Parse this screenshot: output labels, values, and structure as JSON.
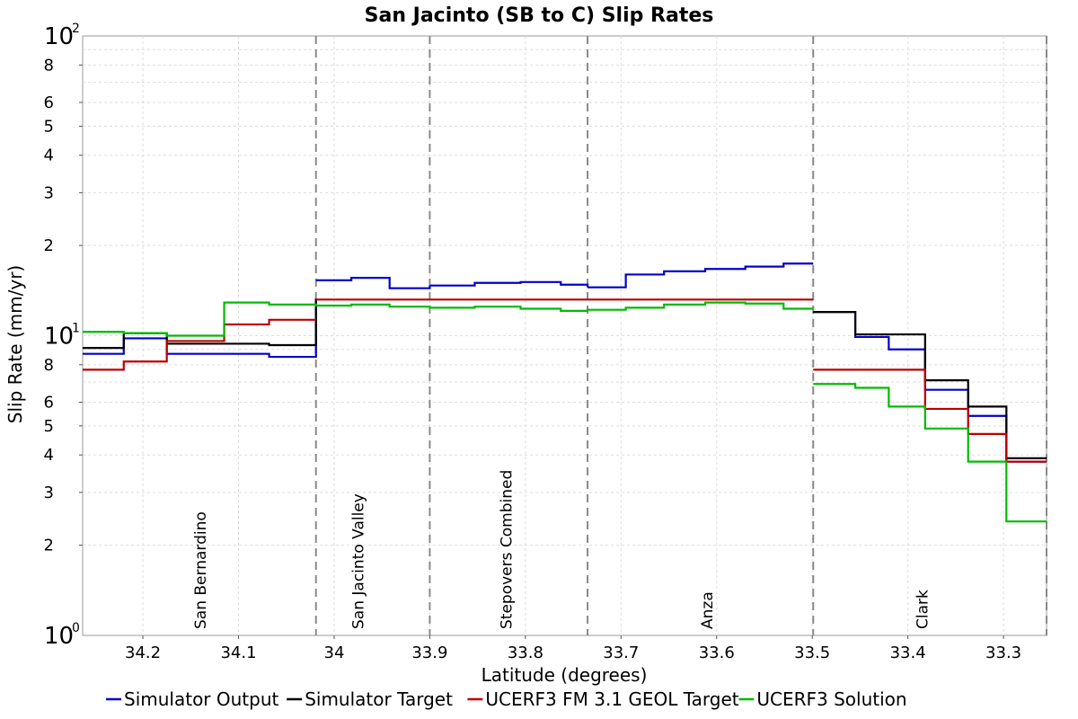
{
  "chart_data": {
    "type": "line",
    "step": true,
    "title": "San Jacinto (SB to C) Slip Rates",
    "xlabel": "Latitude (degrees)",
    "ylabel": "Slip Rate (mm/yr)",
    "x_reversed": true,
    "xlim": [
      34.263,
      33.255
    ],
    "ylim": [
      1,
      100
    ],
    "y_scale": "log",
    "grid": true,
    "legend_position": "bottom",
    "x_ticks": [
      34.2,
      34.1,
      34.0,
      33.9,
      33.8,
      33.7,
      33.6,
      33.5,
      33.4,
      33.3
    ],
    "x_tick_labels": [
      "34.2",
      "34.1",
      "34",
      "33.9",
      "33.8",
      "33.7",
      "33.6",
      "33.5",
      "33.4",
      "33.3"
    ],
    "y_minor_ticks": [
      2,
      3,
      4,
      5,
      6,
      8,
      20,
      30,
      40,
      50,
      60,
      80
    ],
    "y_minor_tick_labels": [
      "2",
      "3",
      "4",
      "5",
      "6",
      "8",
      "2",
      "3",
      "4",
      "5",
      "6",
      "8"
    ],
    "y_decades": [
      {
        "value": 1,
        "base": "10",
        "exp": "0"
      },
      {
        "value": 10,
        "base": "10",
        "exp": "1"
      },
      {
        "value": 100,
        "base": "10",
        "exp": "2"
      }
    ],
    "sections": [
      {
        "label": "San Bernardino",
        "x": 34.14
      },
      {
        "label": "San Jacinto Valley",
        "x": 33.975
      },
      {
        "label": "Stepovers Combined",
        "x": 33.82
      },
      {
        "label": "Anza",
        "x": 33.61
      },
      {
        "label": "Clark",
        "x": 33.385
      }
    ],
    "section_boundaries": [
      34.019,
      33.9,
      33.735,
      33.499,
      33.255
    ],
    "series": [
      {
        "name": "Simulator Output",
        "color": "#0000cc",
        "segments": [
          {
            "x": [
              34.263,
              34.22,
              34.175,
              34.068,
              34.019
            ],
            "y": [
              8.7,
              9.8,
              8.7,
              8.5,
              13.3
            ]
          },
          {
            "x": [
              34.019,
              33.982,
              33.942,
              33.9
            ],
            "y": [
              15.3,
              15.6,
              14.4,
              14.7
            ]
          },
          {
            "x": [
              33.9,
              33.853,
              33.805,
              33.763,
              33.735
            ],
            "y": [
              14.7,
              15.0,
              15.1,
              14.8,
              14.5
            ]
          },
          {
            "x": [
              33.735,
              33.695,
              33.655,
              33.612,
              33.57,
              33.53,
              33.499
            ],
            "y": [
              14.5,
              16.0,
              16.4,
              16.7,
              17.0,
              17.4,
              17.4
            ]
          },
          {
            "x": [
              33.499,
              33.455,
              33.42,
              33.382,
              33.337,
              33.297,
              33.255
            ],
            "y": [
              12.0,
              9.9,
              9.0,
              6.6,
              5.4,
              3.8,
              3.8
            ]
          }
        ]
      },
      {
        "name": "Simulator Target",
        "color": "#000000",
        "segments": [
          {
            "x": [
              34.263,
              34.22,
              34.175,
              34.068,
              34.019
            ],
            "y": [
              9.1,
              10.2,
              9.4,
              9.3,
              13.3
            ]
          },
          {
            "x": [
              33.499,
              33.455,
              33.382,
              33.337,
              33.297,
              33.255
            ],
            "y": [
              12.0,
              10.1,
              7.1,
              5.8,
              3.9,
              3.9
            ]
          }
        ]
      },
      {
        "name": "UCERF3 FM 3.1 GEOL Target",
        "color": "#bb0000",
        "segments": [
          {
            "x": [
              34.263,
              34.22,
              34.175,
              34.115,
              34.068,
              34.019
            ],
            "y": [
              7.7,
              8.2,
              9.6,
              10.9,
              11.3,
              11.3
            ]
          },
          {
            "x": [
              34.019,
              33.499
            ],
            "y": [
              13.2,
              13.2
            ]
          },
          {
            "x": [
              33.499,
              33.382,
              33.337,
              33.297,
              33.255
            ],
            "y": [
              7.7,
              5.7,
              4.7,
              3.8,
              3.8
            ]
          }
        ]
      },
      {
        "name": "UCERF3 Solution",
        "color": "#00bb00",
        "segments": [
          {
            "x": [
              34.263,
              34.22,
              34.175,
              34.115,
              34.068,
              34.019,
              33.982,
              33.942,
              33.9,
              33.853,
              33.805,
              33.763,
              33.735,
              33.695,
              33.655,
              33.612,
              33.57,
              33.53,
              33.499
            ],
            "y": [
              10.3,
              10.2,
              10.0,
              12.9,
              12.7,
              12.6,
              12.7,
              12.5,
              12.4,
              12.5,
              12.3,
              12.1,
              12.2,
              12.4,
              12.7,
              12.9,
              12.8,
              12.3,
              12.3
            ]
          },
          {
            "x": [
              33.499,
              33.455,
              33.42,
              33.382,
              33.337,
              33.297,
              33.255
            ],
            "y": [
              6.9,
              6.7,
              5.8,
              4.9,
              3.8,
              2.4,
              2.4
            ]
          }
        ]
      }
    ]
  }
}
